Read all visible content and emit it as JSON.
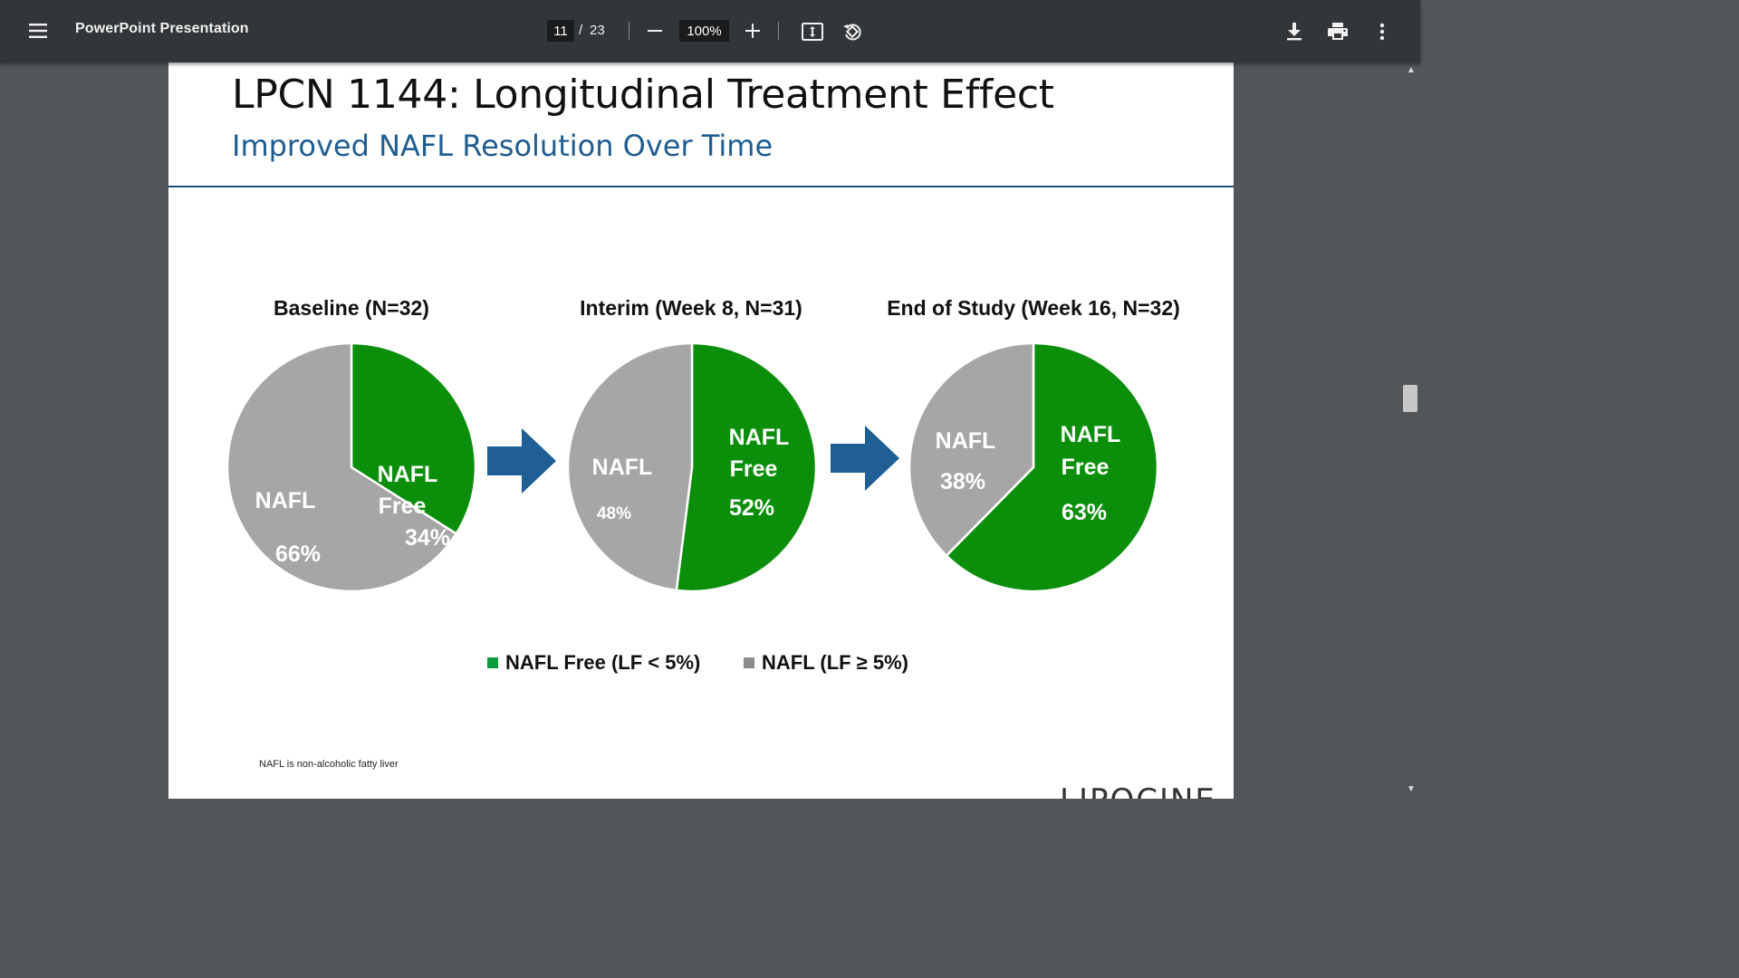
{
  "toolbar": {
    "title": "PowerPoint Presentation",
    "current_page": "11",
    "page_separator": "/",
    "total_pages": "23",
    "zoom": "100%",
    "icons": [
      "menu-icon",
      "zoom-out-icon",
      "zoom-in-icon",
      "fit-page-icon",
      "rotate-icon",
      "download-icon",
      "print-icon",
      "more-vert-icon"
    ]
  },
  "slide": {
    "title": "LPCN 1144: Longitudinal Treatment Effect",
    "subtitle": "Improved NAFL Resolution Over Time",
    "footnote": "NAFL is non-alcoholic fatty liver",
    "logo": "LIPOCINE"
  },
  "chart_data": [
    {
      "type": "pie",
      "title": "Baseline (N=32)",
      "slices": [
        {
          "label": "NAFL Free",
          "value": 34,
          "display": "34%",
          "color": "#0b8f0b"
        },
        {
          "label": "NAFL",
          "value": 66,
          "display": "66%",
          "color": "#a6a6a6"
        }
      ],
      "text": {
        "free_line1": "NAFL",
        "free_line2": "Free",
        "nafl": "NAFL"
      }
    },
    {
      "type": "pie",
      "title": "Interim (Week 8, N=31)",
      "slices": [
        {
          "label": "NAFL Free",
          "value": 52,
          "display": "52%",
          "color": "#0b8f0b"
        },
        {
          "label": "NAFL",
          "value": 48,
          "display": "48%",
          "color": "#a6a6a6"
        }
      ],
      "text": {
        "free_line1": "NAFL",
        "free_line2": "Free",
        "nafl": "NAFL"
      }
    },
    {
      "type": "pie",
      "title": "End of Study (Week 16, N=32)",
      "slices": [
        {
          "label": "NAFL Free",
          "value": 63,
          "display": "63%",
          "color": "#0b8f0b"
        },
        {
          "label": "NAFL",
          "value": 38,
          "display": "38%",
          "color": "#a6a6a6"
        }
      ],
      "text": {
        "free_line1": "NAFL",
        "free_line2": "Free",
        "nafl": "NAFL"
      }
    }
  ],
  "legend": [
    {
      "label": "NAFL Free (LF < 5%)",
      "color": "#0b9c3c"
    },
    {
      "label": "NAFL (LF ≥ 5%)",
      "color": "#8c8c8c"
    }
  ],
  "colors": {
    "arrow": "#1f5f95",
    "accent_blue": "#1f5d91"
  }
}
